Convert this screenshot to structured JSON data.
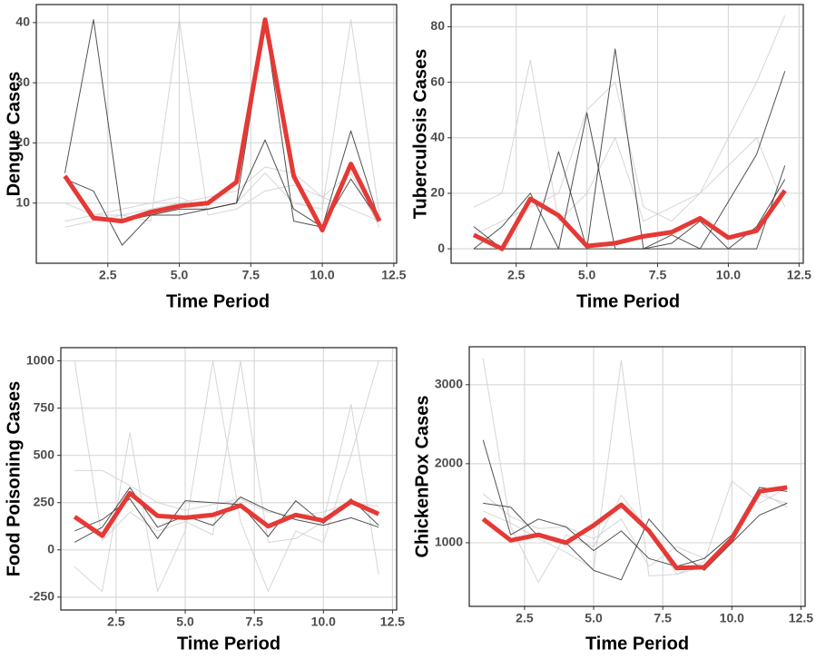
{
  "chart_data": [
    {
      "type": "line",
      "ylabel": "Dengue Cases",
      "xlabel": "Time Period",
      "x": [
        1,
        2,
        3,
        4,
        5,
        6,
        7,
        8,
        9,
        10,
        11,
        12
      ],
      "xlim": [
        0,
        12.6
      ],
      "xticks": [
        2.5,
        {
          "value": 5,
          "label": "5.0"
        },
        7.5,
        {
          "value": 10,
          "label": "10.0"
        },
        12.5
      ],
      "ylim": [
        0,
        43
      ],
      "yticks": [
        10,
        20,
        30,
        40
      ],
      "grid": true,
      "series": [
        {
          "color": "#cfcfcf",
          "values": [
            7,
            8,
            9,
            10,
            11,
            9,
            10,
            15,
            10,
            9,
            40.5,
            8
          ]
        },
        {
          "color": "#cfcfcf",
          "values": [
            10,
            8,
            8,
            7,
            40.5,
            8,
            9,
            12,
            13,
            11,
            15,
            6
          ]
        },
        {
          "color": "#cfcfcf",
          "values": [
            6,
            7,
            8,
            9,
            10,
            11,
            12,
            16,
            15,
            11,
            9,
            7
          ]
        },
        {
          "color": "#333333",
          "values": [
            15,
            40.5,
            7,
            8,
            8,
            9,
            10,
            20.5,
            9,
            6,
            14,
            7
          ]
        },
        {
          "color": "#333333",
          "values": [
            14,
            12,
            3,
            8,
            9,
            9,
            10,
            40,
            7,
            6,
            22,
            7
          ]
        },
        {
          "color": "#e53935",
          "values": [
            14.5,
            7.5,
            7,
            8.5,
            9.5,
            10,
            13.5,
            40.5,
            14.5,
            5.5,
            16.5,
            7
          ]
        }
      ]
    },
    {
      "type": "line",
      "ylabel": "Tuberculosis Cases",
      "xlabel": "Time Period",
      "x": [
        1,
        2,
        3,
        4,
        5,
        6,
        7,
        8,
        9,
        10,
        11,
        12
      ],
      "xlim": [
        0.2,
        12.65
      ],
      "xticks": [
        2.5,
        {
          "value": 5,
          "label": "5.0"
        },
        7.5,
        {
          "value": 10,
          "label": "10.0"
        },
        12.5
      ],
      "ylim": [
        -5.2,
        88
      ],
      "yticks": [
        0,
        20,
        40,
        60,
        80
      ],
      "grid": true,
      "series": [
        {
          "color": "#cfcfcf",
          "values": [
            15,
            20,
            68,
            10,
            20,
            40,
            10,
            15,
            20,
            40,
            60,
            84
          ]
        },
        {
          "color": "#cfcfcf",
          "values": [
            5,
            10,
            15,
            20,
            50,
            60,
            15,
            10,
            20,
            30,
            40,
            15
          ]
        },
        {
          "color": "#333333",
          "values": [
            8,
            0,
            0,
            35,
            0,
            0,
            0,
            5,
            0,
            17,
            34,
            64
          ]
        },
        {
          "color": "#333333",
          "values": [
            0,
            8,
            20,
            0,
            49,
            0,
            0,
            2,
            10,
            0,
            0,
            30
          ]
        },
        {
          "color": "#333333",
          "values": [
            0,
            0,
            0,
            0,
            0,
            72,
            0,
            0,
            0,
            0,
            8,
            25
          ]
        },
        {
          "color": "#e53935",
          "values": [
            5,
            0,
            18,
            12,
            1,
            2,
            4.5,
            6,
            11,
            4,
            6.5,
            21
          ]
        }
      ]
    },
    {
      "type": "line",
      "ylabel": "Food Poisoning Cases",
      "xlabel": "Time Period",
      "x": [
        1,
        2,
        3,
        4,
        5,
        6,
        7,
        8,
        9,
        10,
        11,
        12
      ],
      "xlim": [
        0.5,
        12.65
      ],
      "xticks": [
        2.5,
        {
          "value": 5,
          "label": "5.0"
        },
        7.5,
        {
          "value": 10,
          "label": "10.0"
        },
        12.5
      ],
      "ylim": [
        -318,
        1070
      ],
      "yticks": [
        -250,
        0,
        250,
        500,
        750,
        1000
      ],
      "grid": true,
      "series": [
        {
          "color": "#cfcfcf",
          "values": [
            420,
            420,
            340,
            250,
            210,
            240,
            270,
            200,
            180,
            200,
            250,
            230
          ]
        },
        {
          "color": "#cfcfcf",
          "values": [
            1000,
            50,
            200,
            100,
            150,
            80,
            1000,
            40,
            60,
            150,
            770,
            -130
          ]
        },
        {
          "color": "#cfcfcf",
          "values": [
            -90,
            -220,
            620,
            -220,
            100,
            1000,
            150,
            -220,
            100,
            40,
            500,
            1000
          ]
        },
        {
          "color": "#333333",
          "values": [
            100,
            160,
            270,
            60,
            260,
            250,
            240,
            70,
            260,
            140,
            270,
            130
          ]
        },
        {
          "color": "#333333",
          "values": [
            40,
            120,
            330,
            120,
            180,
            130,
            280,
            210,
            160,
            130,
            170,
            120
          ]
        },
        {
          "color": "#e53935",
          "values": [
            175,
            75,
            300,
            180,
            170,
            185,
            235,
            125,
            185,
            155,
            255,
            190
          ]
        }
      ]
    },
    {
      "type": "line",
      "ylabel": "ChickenPox Cases",
      "xlabel": "Time Period",
      "x": [
        1,
        2,
        3,
        4,
        5,
        6,
        7,
        8,
        9,
        10,
        11,
        12
      ],
      "xlim": [
        0.5,
        12.65
      ],
      "xticks": [
        2.5,
        {
          "value": 5,
          "label": "5.0"
        },
        7.5,
        {
          "value": 10,
          "label": "10.0"
        },
        12.5
      ],
      "ylim": [
        195,
        3480
      ],
      "yticks": [
        1000,
        2000,
        3000
      ],
      "grid": true,
      "series": [
        {
          "color": "#cfcfcf",
          "values": [
            1620,
            1330,
            1180,
            1200,
            1050,
            1300,
            700,
            950,
            800,
            1100,
            1600,
            1500
          ]
        },
        {
          "color": "#cfcfcf",
          "values": [
            1400,
            1250,
            1050,
            880,
            670,
            3310,
            580,
            600,
            700,
            1000,
            1650,
            1450
          ]
        },
        {
          "color": "#cfcfcf",
          "values": [
            3330,
            1200,
            500,
            1100,
            950,
            1600,
            1150,
            600,
            760,
            1780,
            1500,
            1700
          ]
        },
        {
          "color": "#333333",
          "values": [
            1500,
            1450,
            1080,
            1000,
            650,
            530,
            1300,
            900,
            650,
            1000,
            1350,
            1500
          ]
        },
        {
          "color": "#333333",
          "values": [
            2300,
            1100,
            1300,
            1200,
            900,
            1150,
            800,
            700,
            800,
            1100,
            1700,
            1650
          ]
        },
        {
          "color": "#e53935",
          "values": [
            1300,
            1030,
            1100,
            1000,
            1220,
            1480,
            1150,
            680,
            690,
            1050,
            1650,
            1700
          ]
        }
      ]
    }
  ]
}
